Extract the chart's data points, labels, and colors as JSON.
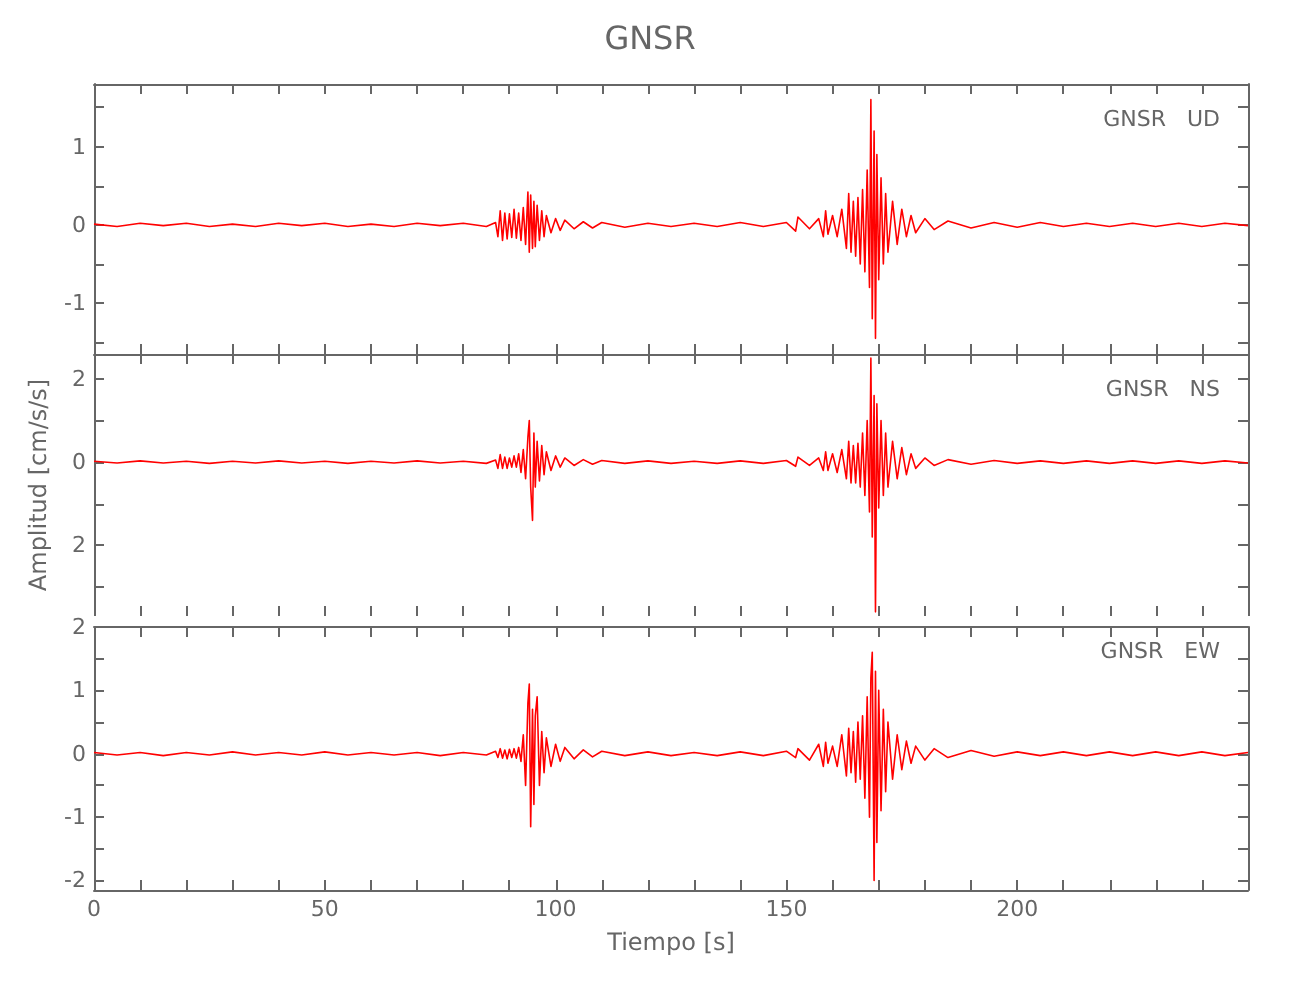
{
  "chart_data": [
    {
      "type": "line",
      "title": "GNSR",
      "annotations": [
        "GNSR   UD"
      ],
      "tick_labels": "y",
      "grid": false,
      "xlim": [
        0,
        250
      ],
      "ylim": [
        -1.65,
        1.8
      ],
      "xticks": [
        0,
        {
          "value": 10,
          "label": null
        },
        {
          "value": 20,
          "label": null
        },
        {
          "value": 30,
          "label": null
        },
        {
          "value": 40,
          "label": null
        },
        50,
        {
          "value": 60,
          "label": null
        },
        {
          "value": 70,
          "label": null
        },
        {
          "value": 80,
          "label": null
        },
        {
          "value": 90,
          "label": null
        },
        100,
        {
          "value": 110,
          "label": null
        },
        {
          "value": 120,
          "label": null
        },
        {
          "value": 130,
          "label": null
        },
        {
          "value": 140,
          "label": null
        },
        150,
        {
          "value": 160,
          "label": null
        },
        {
          "value": 170,
          "label": null
        },
        {
          "value": 180,
          "label": null
        },
        {
          "value": 190,
          "label": null
        },
        200,
        {
          "value": 210,
          "label": null
        },
        {
          "value": 220,
          "label": null
        },
        {
          "value": 230,
          "label": null
        },
        {
          "value": 240,
          "label": null
        }
      ],
      "yticks": [
        {
          "value": -1.5,
          "label": null
        },
        -1,
        {
          "value": -0.5,
          "label": null
        },
        0,
        {
          "value": 0.5,
          "label": null
        },
        1,
        {
          "value": 1.5,
          "label": null
        }
      ],
      "x": [
        0,
        5,
        10,
        15,
        20,
        25,
        30,
        35,
        40,
        45,
        50,
        55,
        60,
        65,
        70,
        75,
        80,
        85,
        87,
        87.5,
        88,
        88.5,
        89,
        89.5,
        90,
        90.5,
        91,
        91.5,
        92,
        92.5,
        93,
        93.5,
        94,
        94.3,
        94.6,
        95,
        95.3,
        95.6,
        96,
        96.5,
        97,
        97.5,
        98,
        99,
        100,
        101,
        102,
        104,
        106,
        108,
        110,
        115,
        120,
        125,
        130,
        135,
        140,
        145,
        150,
        152,
        152.5,
        155,
        157,
        158,
        158.5,
        159,
        160,
        161,
        162,
        163,
        163.5,
        164,
        164.5,
        165,
        165.5,
        166,
        166.5,
        167,
        167.5,
        168,
        168.3,
        168.6,
        169,
        169.3,
        169.6,
        170,
        170.5,
        171,
        171.5,
        172,
        173,
        174,
        175,
        176,
        177,
        178,
        180,
        182,
        185,
        190,
        195,
        200,
        205,
        210,
        215,
        220,
        225,
        230,
        235,
        240,
        245,
        250
      ],
      "series": [
        {
          "color": "#ff0000",
          "values": [
            0.01,
            -0.02,
            0.02,
            -0.01,
            0.02,
            -0.02,
            0.01,
            -0.02,
            0.02,
            -0.01,
            0.02,
            -0.02,
            0.01,
            -0.02,
            0.02,
            -0.01,
            0.02,
            -0.02,
            0.03,
            -0.15,
            0.18,
            -0.2,
            0.15,
            -0.18,
            0.14,
            -0.16,
            0.2,
            -0.17,
            0.15,
            -0.2,
            0.22,
            -0.25,
            0.42,
            -0.35,
            0.38,
            -0.3,
            0.3,
            -0.28,
            0.25,
            -0.2,
            0.18,
            -0.15,
            0.12,
            -0.1,
            0.08,
            -0.07,
            0.06,
            -0.05,
            0.04,
            -0.04,
            0.03,
            -0.03,
            0.02,
            -0.02,
            0.02,
            -0.02,
            0.03,
            -0.02,
            0.03,
            -0.08,
            0.1,
            -0.05,
            0.08,
            -0.15,
            0.18,
            -0.12,
            0.12,
            -0.15,
            0.2,
            -0.3,
            0.4,
            -0.35,
            0.3,
            -0.4,
            0.35,
            -0.5,
            0.45,
            -0.6,
            0.7,
            -0.8,
            1.6,
            -1.2,
            1.2,
            -1.45,
            0.9,
            -0.7,
            0.6,
            -0.5,
            0.4,
            -0.35,
            0.3,
            -0.25,
            0.2,
            -0.15,
            0.12,
            -0.1,
            0.08,
            -0.06,
            0.05,
            -0.04,
            0.03,
            -0.03,
            0.03,
            -0.02,
            0.02,
            -0.02,
            0.02,
            -0.02,
            0.02,
            -0.02,
            0.02,
            -0.01
          ]
        }
      ]
    },
    {
      "type": "line",
      "ylabel": "Amplitud [cm/s/s]",
      "annotations": [
        "GNSR   NS"
      ],
      "tick_labels": "y",
      "grid": false,
      "xlim": [
        0,
        250
      ],
      "ylim": [
        -3.7,
        2.6
      ],
      "xticks": [
        0,
        {
          "value": 10,
          "label": null
        },
        {
          "value": 20,
          "label": null
        },
        {
          "value": 30,
          "label": null
        },
        {
          "value": 40,
          "label": null
        },
        50,
        {
          "value": 60,
          "label": null
        },
        {
          "value": 70,
          "label": null
        },
        {
          "value": 80,
          "label": null
        },
        {
          "value": 90,
          "label": null
        },
        100,
        {
          "value": 110,
          "label": null
        },
        {
          "value": 120,
          "label": null
        },
        {
          "value": 130,
          "label": null
        },
        {
          "value": 140,
          "label": null
        },
        150,
        {
          "value": 160,
          "label": null
        },
        {
          "value": 170,
          "label": null
        },
        {
          "value": 180,
          "label": null
        },
        {
          "value": 190,
          "label": null
        },
        200,
        {
          "value": 210,
          "label": null
        },
        {
          "value": 220,
          "label": null
        },
        {
          "value": 230,
          "label": null
        },
        {
          "value": 240,
          "label": null
        }
      ],
      "yticks": [
        {
          "value": -3,
          "label": null
        },
        {
          "value": -2,
          "label": "2"
        },
        {
          "value": -1,
          "label": null
        },
        0,
        {
          "value": 1,
          "label": null
        },
        2
      ],
      "x": [
        0,
        5,
        10,
        15,
        20,
        25,
        30,
        35,
        40,
        45,
        50,
        55,
        60,
        65,
        70,
        75,
        80,
        85,
        87,
        87.5,
        88,
        88.5,
        89,
        89.5,
        90,
        90.5,
        91,
        91.5,
        92,
        92.5,
        93,
        93.5,
        94,
        94.3,
        94.6,
        95,
        95.3,
        95.6,
        96,
        96.5,
        97,
        97.5,
        98,
        99,
        100,
        101,
        102,
        104,
        106,
        108,
        110,
        115,
        120,
        125,
        130,
        135,
        140,
        145,
        150,
        152,
        152.5,
        155,
        157,
        158,
        158.5,
        159,
        160,
        161,
        162,
        163,
        163.5,
        164,
        164.5,
        165,
        165.5,
        166,
        166.5,
        167,
        167.5,
        168,
        168.3,
        168.6,
        169,
        169.3,
        169.6,
        170,
        170.5,
        171,
        171.5,
        172,
        173,
        174,
        175,
        176,
        177,
        178,
        180,
        182,
        185,
        190,
        195,
        200,
        205,
        210,
        215,
        220,
        225,
        230,
        235,
        240,
        245,
        250
      ],
      "series": [
        {
          "color": "#ff0000",
          "values": [
            0.02,
            -0.02,
            0.03,
            -0.02,
            0.02,
            -0.03,
            0.02,
            -0.02,
            0.03,
            -0.02,
            0.02,
            -0.03,
            0.02,
            -0.02,
            0.03,
            -0.02,
            0.02,
            -0.03,
            0.05,
            -0.15,
            0.18,
            -0.15,
            0.12,
            -0.15,
            0.1,
            -0.12,
            0.15,
            -0.12,
            0.2,
            -0.25,
            0.3,
            -0.4,
            0.6,
            1.0,
            -0.6,
            -1.4,
            0.7,
            -0.6,
            0.5,
            -0.45,
            0.4,
            -0.3,
            0.25,
            -0.2,
            0.15,
            -0.12,
            0.1,
            -0.08,
            0.06,
            -0.05,
            0.04,
            -0.03,
            0.03,
            -0.03,
            0.02,
            -0.03,
            0.03,
            -0.03,
            0.04,
            -0.1,
            0.12,
            -0.08,
            0.1,
            -0.2,
            0.25,
            -0.2,
            0.2,
            -0.25,
            0.3,
            -0.4,
            0.5,
            -0.5,
            0.4,
            -0.5,
            0.45,
            -0.6,
            0.7,
            -0.8,
            1.0,
            -1.2,
            2.5,
            -1.8,
            1.6,
            -3.6,
            1.4,
            -1.1,
            1.0,
            -0.8,
            0.7,
            -0.6,
            0.5,
            -0.4,
            0.35,
            -0.3,
            0.2,
            -0.15,
            0.1,
            -0.08,
            0.06,
            -0.05,
            0.04,
            -0.03,
            0.03,
            -0.03,
            0.03,
            -0.03,
            0.03,
            -0.03,
            0.03,
            -0.03,
            0.03,
            -0.02
          ]
        }
      ]
    },
    {
      "type": "line",
      "xlabel": "Tiempo [s]",
      "annotations": [
        "GNSR   EW"
      ],
      "grid": false,
      "xlim": [
        0,
        250
      ],
      "ylim": [
        -2.15,
        2.0
      ],
      "xticks": [
        0,
        {
          "value": 10,
          "label": null
        },
        {
          "value": 20,
          "label": null
        },
        {
          "value": 30,
          "label": null
        },
        {
          "value": 40,
          "label": null
        },
        50,
        {
          "value": 60,
          "label": null
        },
        {
          "value": 70,
          "label": null
        },
        {
          "value": 80,
          "label": null
        },
        {
          "value": 90,
          "label": null
        },
        100,
        {
          "value": 110,
          "label": null
        },
        {
          "value": 120,
          "label": null
        },
        {
          "value": 130,
          "label": null
        },
        {
          "value": 140,
          "label": null
        },
        150,
        {
          "value": 160,
          "label": null
        },
        {
          "value": 170,
          "label": null
        },
        {
          "value": 180,
          "label": null
        },
        {
          "value": 190,
          "label": null
        },
        200,
        {
          "value": 210,
          "label": null
        },
        {
          "value": 220,
          "label": null
        },
        {
          "value": 230,
          "label": null
        },
        {
          "value": 240,
          "label": null
        }
      ],
      "yticks": [
        -2,
        {
          "value": -1.5,
          "label": null
        },
        -1,
        {
          "value": -0.5,
          "label": null
        },
        0,
        {
          "value": 0.5,
          "label": null
        },
        1,
        {
          "value": 1.5,
          "label": null
        },
        2
      ],
      "x": [
        0,
        5,
        10,
        15,
        20,
        25,
        30,
        35,
        40,
        45,
        50,
        55,
        60,
        65,
        70,
        75,
        80,
        85,
        87,
        87.5,
        88,
        88.5,
        89,
        89.5,
        90,
        90.5,
        91,
        91.5,
        92,
        92.5,
        93,
        93.5,
        94,
        94.3,
        94.6,
        95,
        95.3,
        95.6,
        96,
        96.5,
        97,
        97.5,
        98,
        99,
        100,
        101,
        102,
        104,
        106,
        108,
        110,
        115,
        120,
        125,
        130,
        135,
        140,
        145,
        150,
        152,
        152.5,
        155,
        157,
        158,
        158.5,
        159,
        160,
        161,
        162,
        163,
        163.5,
        164,
        164.5,
        165,
        165.5,
        166,
        166.5,
        167,
        167.5,
        168,
        168.3,
        168.6,
        169,
        169.3,
        169.6,
        170,
        170.5,
        171,
        171.5,
        172,
        173,
        174,
        175,
        176,
        177,
        178,
        180,
        182,
        185,
        190,
        195,
        200,
        205,
        210,
        215,
        220,
        225,
        230,
        235,
        240,
        245,
        250
      ],
      "series": [
        {
          "color": "#ff0000",
          "values": [
            0.02,
            -0.02,
            0.02,
            -0.03,
            0.02,
            -0.02,
            0.03,
            -0.02,
            0.02,
            -0.02,
            0.03,
            -0.02,
            0.02,
            -0.02,
            0.02,
            -0.03,
            0.02,
            -0.02,
            0.04,
            -0.06,
            0.08,
            -0.07,
            0.06,
            -0.08,
            0.07,
            -0.06,
            0.08,
            -0.07,
            0.1,
            -0.12,
            0.3,
            -0.5,
            0.8,
            1.1,
            -1.15,
            0.7,
            -0.8,
            0.6,
            0.9,
            -0.5,
            0.35,
            -0.3,
            0.25,
            -0.2,
            0.15,
            -0.12,
            0.1,
            -0.08,
            0.06,
            -0.05,
            0.04,
            -0.03,
            0.03,
            -0.03,
            0.02,
            -0.03,
            0.03,
            -0.03,
            0.04,
            -0.06,
            0.08,
            -0.1,
            0.15,
            -0.2,
            0.18,
            -0.15,
            0.12,
            -0.2,
            0.3,
            -0.35,
            0.4,
            -0.3,
            0.35,
            -0.45,
            0.5,
            -0.4,
            0.6,
            -0.7,
            0.9,
            -1.0,
            1.2,
            1.6,
            -2.0,
            1.3,
            -1.4,
            1.0,
            -0.9,
            0.7,
            -0.6,
            0.5,
            -0.4,
            0.3,
            -0.25,
            0.2,
            -0.15,
            0.12,
            -0.1,
            0.08,
            -0.06,
            0.05,
            -0.04,
            0.03,
            -0.03,
            0.03,
            -0.03,
            0.03,
            -0.03,
            0.03,
            -0.03,
            0.03,
            -0.03,
            0.02
          ]
        }
      ]
    }
  ]
}
